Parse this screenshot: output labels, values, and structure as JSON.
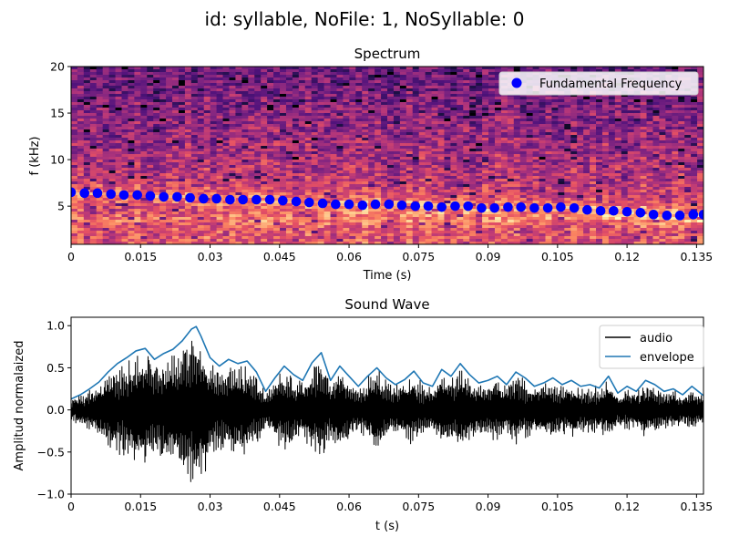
{
  "figure": {
    "suptitle": "id: syllable, NoFile: 1, NoSyllable: 0"
  },
  "chart_data": [
    {
      "type": "heatmap",
      "title": "Spectrum",
      "xlabel": "Time (s)",
      "ylabel": "f (kHz)",
      "xlim": [
        0,
        0.1365
      ],
      "ylim": [
        0.9,
        20
      ],
      "xticks": [
        "0",
        "0.015",
        "0.03",
        "0.045",
        "0.06",
        "0.075",
        "0.09",
        "0.105",
        "0.12",
        "0.135"
      ],
      "yticks": [
        "5",
        "10",
        "15",
        "20"
      ],
      "colormap": "magma",
      "legend_position": "upper-right",
      "series": [
        {
          "name": "Fundamental Frequency",
          "kind": "scatter",
          "color": "#0000ff",
          "x": [
            0.0,
            0.0029,
            0.0057,
            0.0086,
            0.0114,
            0.0143,
            0.0171,
            0.02,
            0.0229,
            0.0257,
            0.0286,
            0.0314,
            0.0343,
            0.0371,
            0.04,
            0.0429,
            0.0457,
            0.0486,
            0.0514,
            0.0543,
            0.0571,
            0.06,
            0.0629,
            0.0657,
            0.0686,
            0.0714,
            0.0743,
            0.0771,
            0.08,
            0.0829,
            0.0857,
            0.0886,
            0.0914,
            0.0943,
            0.0971,
            0.1,
            0.1029,
            0.1057,
            0.1086,
            0.1114,
            0.1143,
            0.1171,
            0.12,
            0.1229,
            0.1257,
            0.1286,
            0.1314,
            0.1343,
            0.1365
          ],
          "y": [
            6.5,
            6.4,
            6.4,
            6.3,
            6.2,
            6.2,
            6.1,
            6.0,
            6.0,
            5.9,
            5.8,
            5.8,
            5.7,
            5.7,
            5.7,
            5.7,
            5.6,
            5.5,
            5.4,
            5.3,
            5.2,
            5.2,
            5.1,
            5.2,
            5.2,
            5.1,
            5.0,
            5.0,
            4.9,
            5.0,
            5.0,
            4.8,
            4.8,
            4.9,
            4.9,
            4.8,
            4.8,
            4.9,
            4.8,
            4.6,
            4.5,
            4.5,
            4.4,
            4.3,
            4.1,
            4.0,
            4.0,
            4.1,
            4.1
          ]
        }
      ]
    },
    {
      "type": "line",
      "title": "Sound Wave",
      "xlabel": "t (s)",
      "ylabel": "Amplitud normalaized",
      "xlim": [
        0,
        0.1365
      ],
      "ylim": [
        -1.0,
        1.1
      ],
      "xticks": [
        "0",
        "0.015",
        "0.03",
        "0.045",
        "0.06",
        "0.075",
        "0.09",
        "0.105",
        "0.12",
        "0.135"
      ],
      "yticks": [
        "−1.0",
        "−0.5",
        "0.0",
        "0.5",
        "1.0"
      ],
      "legend_position": "upper-right",
      "series": [
        {
          "name": "audio",
          "color": "#000000",
          "envelope_source": "envelope"
        },
        {
          "name": "envelope",
          "color": "#1f77b4",
          "x": [
            0.0,
            0.002,
            0.004,
            0.006,
            0.008,
            0.01,
            0.012,
            0.014,
            0.016,
            0.018,
            0.02,
            0.022,
            0.024,
            0.026,
            0.027,
            0.028,
            0.03,
            0.032,
            0.034,
            0.036,
            0.038,
            0.04,
            0.042,
            0.044,
            0.046,
            0.048,
            0.05,
            0.052,
            0.054,
            0.056,
            0.058,
            0.06,
            0.062,
            0.064,
            0.066,
            0.068,
            0.07,
            0.072,
            0.074,
            0.076,
            0.078,
            0.08,
            0.082,
            0.084,
            0.086,
            0.088,
            0.09,
            0.092,
            0.094,
            0.096,
            0.098,
            0.1,
            0.102,
            0.104,
            0.106,
            0.108,
            0.11,
            0.112,
            0.114,
            0.116,
            0.118,
            0.12,
            0.122,
            0.124,
            0.126,
            0.128,
            0.13,
            0.132,
            0.134,
            0.1365
          ],
          "y": [
            0.13,
            0.18,
            0.25,
            0.33,
            0.45,
            0.55,
            0.62,
            0.7,
            0.73,
            0.6,
            0.67,
            0.72,
            0.82,
            0.96,
            0.99,
            0.88,
            0.62,
            0.52,
            0.6,
            0.55,
            0.58,
            0.45,
            0.22,
            0.38,
            0.52,
            0.42,
            0.35,
            0.56,
            0.68,
            0.35,
            0.52,
            0.4,
            0.28,
            0.4,
            0.5,
            0.38,
            0.3,
            0.36,
            0.46,
            0.32,
            0.28,
            0.48,
            0.4,
            0.55,
            0.42,
            0.32,
            0.35,
            0.4,
            0.3,
            0.45,
            0.38,
            0.28,
            0.32,
            0.38,
            0.3,
            0.35,
            0.28,
            0.3,
            0.26,
            0.4,
            0.2,
            0.28,
            0.22,
            0.35,
            0.3,
            0.22,
            0.25,
            0.18,
            0.28,
            0.17
          ]
        }
      ]
    }
  ]
}
